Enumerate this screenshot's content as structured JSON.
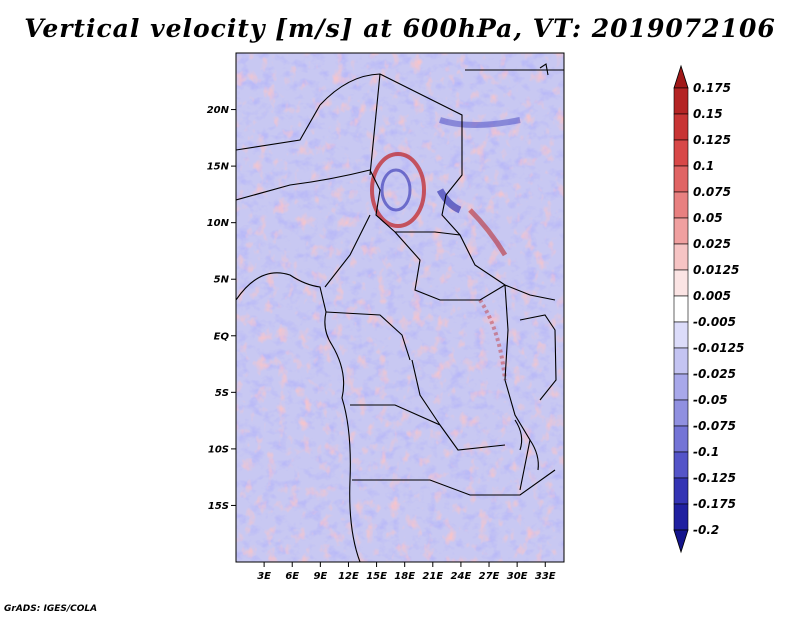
{
  "title": "Vertical velocity [m/s] at 600hPa, VT: 2019072106",
  "credit": "GrADS: IGES/COLA",
  "map": {
    "lon_range": [
      0,
      35
    ],
    "lat_range": [
      -20,
      25
    ],
    "lon_ticks": [
      "3E",
      "6E",
      "9E",
      "12E",
      "15E",
      "18E",
      "21E",
      "24E",
      "27E",
      "30E",
      "33E"
    ],
    "lon_tick_values": [
      3,
      6,
      9,
      12,
      15,
      18,
      21,
      24,
      27,
      30,
      33
    ],
    "lat_ticks": [
      "20N",
      "15N",
      "10N",
      "5N",
      "EQ",
      "5S",
      "10S",
      "15S"
    ],
    "lat_tick_values": [
      20,
      15,
      10,
      5,
      0,
      -5,
      -10,
      -15
    ]
  },
  "colorbar": {
    "labels": [
      "0.175",
      "0.15",
      "0.125",
      "0.1",
      "0.075",
      "0.05",
      "0.025",
      "0.0125",
      "0.005",
      "-0.005",
      "-0.0125",
      "-0.025",
      "-0.05",
      "-0.075",
      "-0.1",
      "-0.125",
      "-0.175",
      "-0.2"
    ],
    "colors": [
      "#a01818",
      "#b42424",
      "#c83434",
      "#d84848",
      "#e06464",
      "#e88080",
      "#f0a0a0",
      "#f6c4c4",
      "#fbe4e4",
      "#ffffff",
      "#dcdcfa",
      "#c4c4f2",
      "#a8a8ea",
      "#9090e0",
      "#7474d6",
      "#5454c8",
      "#3434b4",
      "#2020a0",
      "#14148c"
    ]
  }
}
